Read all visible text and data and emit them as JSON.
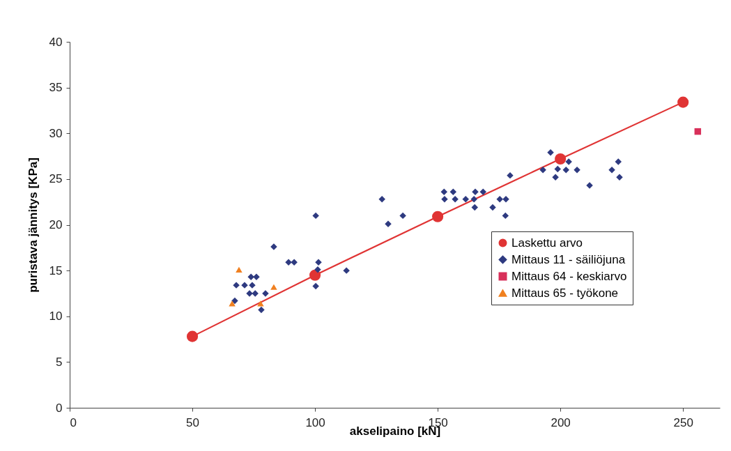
{
  "chart_data": {
    "type": "scatter",
    "xlabel": "akselipaino [kN]",
    "ylabel": "puristava jännitys [KPa]",
    "xlim": [
      0,
      265
    ],
    "ylim": [
      0,
      40
    ],
    "xticks": [
      0,
      50,
      100,
      150,
      200,
      250
    ],
    "yticks": [
      0,
      5,
      10,
      15,
      20,
      25,
      30,
      35,
      40
    ],
    "grid": false,
    "legend": "right",
    "series": [
      {
        "name": "Laskettu arvo",
        "type": "line",
        "marker": "circle",
        "color": "#e03434",
        "x": [
          50,
          100,
          150,
          200,
          250
        ],
        "values": [
          7.8,
          14.5,
          20.9,
          27.2,
          33.4
        ]
      },
      {
        "name": "Mittaus 11 - säiliöjuna",
        "type": "scatter",
        "marker": "diamond",
        "color": "#2e3a80",
        "x": [
          100.3,
          83.2,
          89.2,
          91.5,
          101.4,
          101.1,
          100.3,
          112.8,
          73.9,
          76.1,
          67.9,
          71.3,
          74.4,
          73.3,
          75.6,
          79.8,
          67.3,
          78.1,
          127.3,
          135.8,
          129.8,
          152.6,
          156.3,
          152.8,
          157.1,
          161.4,
          165.3,
          168.5,
          164.8,
          165.1,
          172.4,
          175.3,
          177.8,
          177.6,
          179.5,
          196.0,
          192.9,
          203.4,
          198.9,
          202.3,
          198.0,
          206.8,
          211.9,
          223.6,
          221.0,
          224.1
        ],
        "values": [
          21.0,
          17.6,
          15.9,
          15.9,
          15.9,
          15.1,
          13.3,
          15.0,
          14.3,
          14.3,
          13.4,
          13.4,
          13.4,
          12.5,
          12.5,
          12.5,
          11.7,
          10.7,
          22.8,
          21.0,
          20.1,
          23.6,
          23.6,
          22.8,
          22.8,
          22.8,
          23.6,
          23.6,
          22.8,
          21.9,
          21.9,
          22.8,
          22.8,
          21.0,
          25.4,
          27.9,
          26.0,
          26.9,
          26.1,
          26.0,
          25.2,
          26.0,
          24.3,
          26.9,
          26.0,
          25.2
        ]
      },
      {
        "name": "Mittaus 64 - keskiarvo",
        "type": "scatter",
        "marker": "square",
        "color": "#d8305a",
        "x": [
          256
        ],
        "values": [
          30.2
        ]
      },
      {
        "name": "Mittaus 65 - työkone",
        "type": "scatter",
        "marker": "triangle",
        "color": "#f08020",
        "x": [
          69.0,
          83.2,
          77.8,
          66.2
        ],
        "values": [
          15.1,
          13.2,
          11.4,
          11.4
        ]
      }
    ]
  }
}
